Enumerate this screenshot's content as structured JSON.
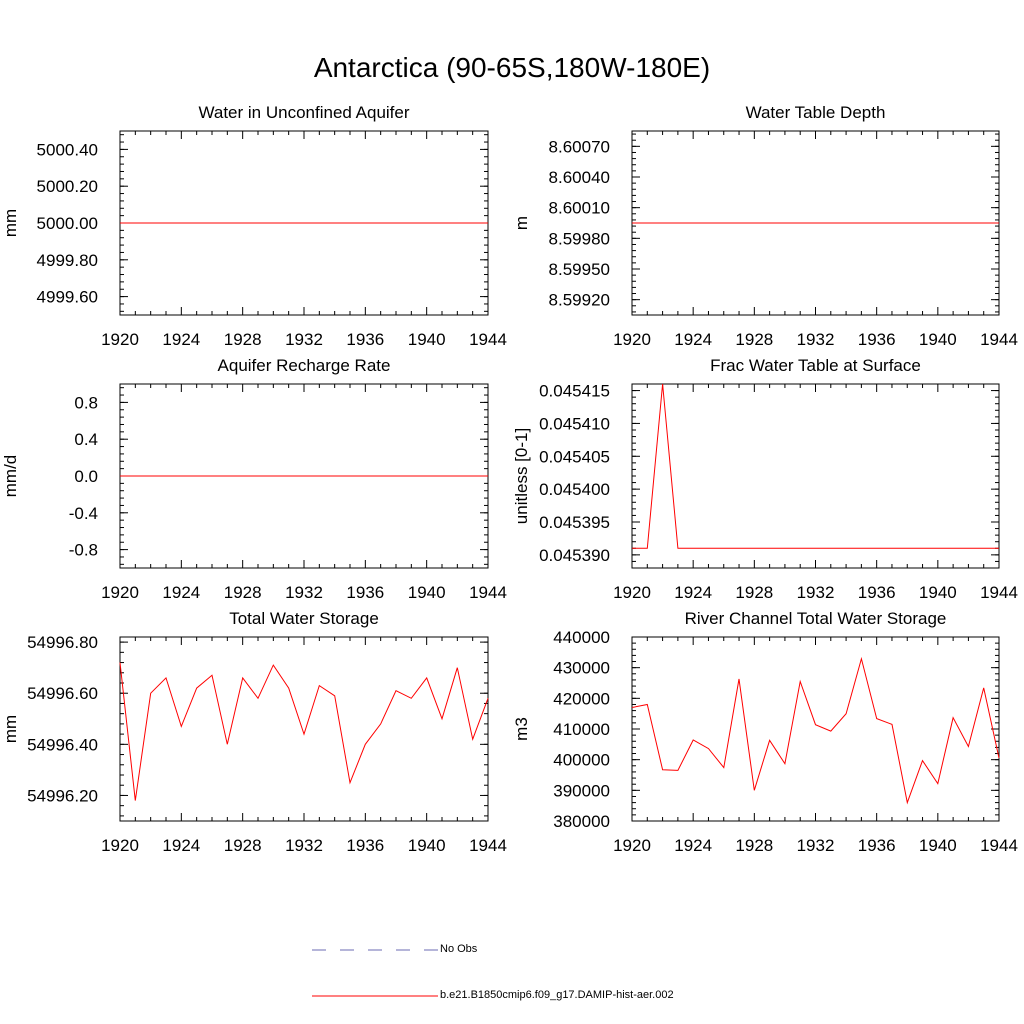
{
  "page": {
    "title": "Antarctica (90-65S,180W-180E)"
  },
  "legend": {
    "items": [
      {
        "label": "No Obs",
        "color": "#6b6bb3",
        "style": "dashed"
      },
      {
        "label": "b.e21.B1850cmip6.f09_g17.DAMIP-hist-aer.002",
        "color": "#ff0000",
        "style": "solid"
      }
    ]
  },
  "chart_data": [
    {
      "type": "line",
      "title": "Water in Unconfined Aquifer",
      "ylabel": "mm",
      "xlim": [
        1920,
        1944
      ],
      "xticks": [
        1920,
        1924,
        1928,
        1932,
        1936,
        1940,
        1944
      ],
      "ylim": [
        4999.5,
        5000.5
      ],
      "yticks": [
        "4999.60",
        "4999.80",
        "5000.00",
        "5000.20",
        "5000.40"
      ],
      "series": [
        {
          "color": "#ff0000",
          "x": [
            1920,
            1944
          ],
          "y": [
            5000.0,
            5000.0
          ]
        }
      ]
    },
    {
      "type": "line",
      "title": "Water Table Depth",
      "ylabel": "m",
      "xlim": [
        1920,
        1944
      ],
      "xticks": [
        1920,
        1924,
        1928,
        1932,
        1936,
        1940,
        1944
      ],
      "ylim": [
        8.59905,
        8.60085
      ],
      "yticks": [
        "8.59920",
        "8.59950",
        "8.59980",
        "8.60010",
        "8.60040",
        "8.60070"
      ],
      "series": [
        {
          "color": "#ff0000",
          "x": [
            1920,
            1944
          ],
          "y": [
            8.59995,
            8.59995
          ]
        }
      ]
    },
    {
      "type": "line",
      "title": "Aquifer Recharge Rate",
      "ylabel": "mm/d",
      "xlim": [
        1920,
        1944
      ],
      "xticks": [
        1920,
        1924,
        1928,
        1932,
        1936,
        1940,
        1944
      ],
      "ylim": [
        -1.0,
        1.0
      ],
      "yticks": [
        "-0.8",
        "-0.4",
        "0.0",
        "0.4",
        "0.8"
      ],
      "series": [
        {
          "color": "#ff0000",
          "x": [
            1920,
            1944
          ],
          "y": [
            0.0,
            0.0
          ]
        }
      ]
    },
    {
      "type": "line",
      "title": "Frac Water Table at Surface",
      "ylabel": "unitless [0-1]",
      "xlim": [
        1920,
        1944
      ],
      "xticks": [
        1920,
        1924,
        1928,
        1932,
        1936,
        1940,
        1944
      ],
      "ylim": [
        0.045388,
        0.045416
      ],
      "yticks": [
        "0.045390",
        "0.045395",
        "0.045400",
        "0.045405",
        "0.045410",
        "0.045415"
      ],
      "series": [
        {
          "color": "#ff0000",
          "x": [
            1920,
            1921,
            1922,
            1923,
            1924,
            1925,
            1926,
            1927,
            1928,
            1929,
            1930,
            1931,
            1932,
            1933,
            1934,
            1935,
            1936,
            1937,
            1938,
            1939,
            1940,
            1941,
            1942,
            1943,
            1944
          ],
          "y": [
            0.045391,
            0.045391,
            0.045416,
            0.045391,
            0.045391,
            0.045391,
            0.045391,
            0.045391,
            0.045391,
            0.045391,
            0.045391,
            0.045391,
            0.045391,
            0.045391,
            0.045391,
            0.045391,
            0.045391,
            0.045391,
            0.045391,
            0.045391,
            0.045391,
            0.045391,
            0.045391,
            0.045391,
            0.045391
          ]
        }
      ]
    },
    {
      "type": "line",
      "title": "Total Water Storage",
      "ylabel": "mm",
      "xlim": [
        1920,
        1944
      ],
      "xticks": [
        1920,
        1924,
        1928,
        1932,
        1936,
        1940,
        1944
      ],
      "ylim": [
        54996.1,
        54996.82
      ],
      "yticks": [
        "54996.20",
        "54996.40",
        "54996.60",
        "54996.80"
      ],
      "series": [
        {
          "color": "#ff0000",
          "x": [
            1920,
            1921,
            1922,
            1923,
            1924,
            1925,
            1926,
            1927,
            1928,
            1929,
            1930,
            1931,
            1932,
            1933,
            1934,
            1935,
            1936,
            1937,
            1938,
            1939,
            1940,
            1941,
            1942,
            1943,
            1944
          ],
          "y": [
            54996.72,
            54996.18,
            54996.6,
            54996.66,
            54996.47,
            54996.62,
            54996.67,
            54996.4,
            54996.66,
            54996.58,
            54996.71,
            54996.62,
            54996.44,
            54996.63,
            54996.59,
            54996.25,
            54996.4,
            54996.48,
            54996.61,
            54996.58,
            54996.66,
            54996.5,
            54996.7,
            54996.42,
            54996.58
          ]
        }
      ]
    },
    {
      "type": "line",
      "title": "River Channel Total Water Storage",
      "ylabel": "m3",
      "xlim": [
        1920,
        1944
      ],
      "xticks": [
        1920,
        1924,
        1928,
        1932,
        1936,
        1940,
        1944
      ],
      "ylim": [
        380000,
        440000
      ],
      "yticks": [
        "380000",
        "390000",
        "400000",
        "410000",
        "420000",
        "430000",
        "440000"
      ],
      "series": [
        {
          "color": "#ff0000",
          "x": [
            1920,
            1921,
            1922,
            1923,
            1924,
            1925,
            1926,
            1927,
            1928,
            1929,
            1930,
            1931,
            1932,
            1933,
            1934,
            1935,
            1936,
            1937,
            1938,
            1939,
            1940,
            1941,
            1942,
            1943,
            1944
          ],
          "y": [
            417000,
            418000,
            396700,
            396500,
            406400,
            403600,
            397400,
            426300,
            390000,
            406300,
            398700,
            425500,
            411400,
            409300,
            415000,
            432900,
            413400,
            411500,
            386000,
            399700,
            392200,
            413700,
            404300,
            423400,
            400500
          ]
        }
      ]
    }
  ]
}
